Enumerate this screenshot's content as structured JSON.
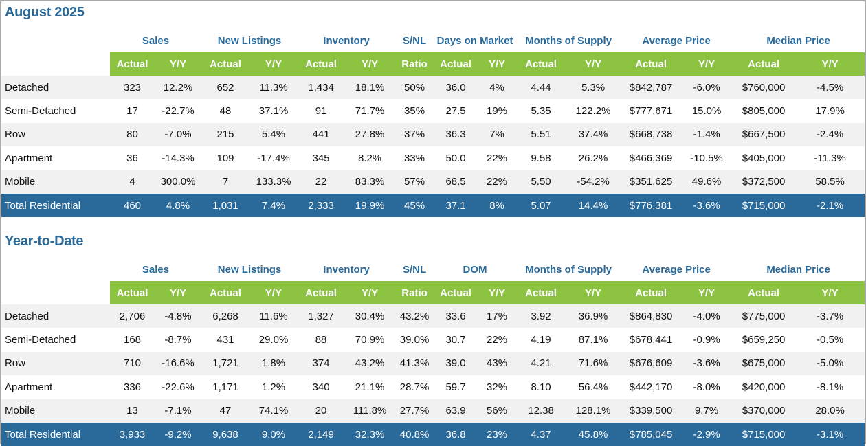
{
  "sections": [
    {
      "title": "August 2025",
      "groups": [
        "Sales",
        "New Listings",
        "Inventory",
        "S/NL",
        "Days on Market",
        "Months of Supply",
        "Average Price",
        "Median Price"
      ],
      "subheaders": [
        "Actual",
        "Y/Y",
        "Actual",
        "Y/Y",
        "Actual",
        "Y/Y",
        "Ratio",
        "Actual",
        "Y/Y",
        "Actual",
        "Y/Y",
        "Actual",
        "Y/Y",
        "Actual",
        "Y/Y"
      ],
      "rows": [
        {
          "label": "Detached",
          "values": [
            "323",
            "12.2%",
            "652",
            "11.3%",
            "1,434",
            "18.1%",
            "50%",
            "36.0",
            "4%",
            "4.44",
            "5.3%",
            "$842,787",
            "-6.0%",
            "$760,000",
            "-4.5%"
          ]
        },
        {
          "label": "Semi-Detached",
          "values": [
            "17",
            "-22.7%",
            "48",
            "37.1%",
            "91",
            "71.7%",
            "35%",
            "27.5",
            "19%",
            "5.35",
            "122.2%",
            "$777,671",
            "15.0%",
            "$805,000",
            "17.9%"
          ]
        },
        {
          "label": "Row",
          "values": [
            "80",
            "-7.0%",
            "215",
            "5.4%",
            "441",
            "27.8%",
            "37%",
            "36.3",
            "7%",
            "5.51",
            "37.4%",
            "$668,738",
            "-1.4%",
            "$667,500",
            "-2.4%"
          ]
        },
        {
          "label": "Apartment",
          "values": [
            "36",
            "-14.3%",
            "109",
            "-17.4%",
            "345",
            "8.2%",
            "33%",
            "50.0",
            "22%",
            "9.58",
            "26.2%",
            "$466,369",
            "-10.5%",
            "$405,000",
            "-11.3%"
          ]
        },
        {
          "label": "Mobile",
          "values": [
            "4",
            "300.0%",
            "7",
            "133.3%",
            "22",
            "83.3%",
            "57%",
            "68.5",
            "22%",
            "5.50",
            "-54.2%",
            "$351,625",
            "49.6%",
            "$372,500",
            "58.5%"
          ]
        }
      ],
      "total": {
        "label": "Total Residential",
        "values": [
          "460",
          "4.8%",
          "1,031",
          "7.4%",
          "2,333",
          "19.9%",
          "45%",
          "37.1",
          "8%",
          "5.07",
          "14.4%",
          "$776,381",
          "-3.6%",
          "$715,000",
          "-2.1%"
        ]
      }
    },
    {
      "title": "Year-to-Date",
      "groups": [
        "Sales",
        "New Listings",
        "Inventory",
        "S/NL",
        "DOM",
        "Months of Supply",
        "Average Price",
        "Median Price"
      ],
      "subheaders": [
        "Actual",
        "Y/Y",
        "Actual",
        "Y/Y",
        "Actual",
        "Y/Y",
        "Ratio",
        "Actual",
        "Y/Y",
        "Actual",
        "Y/Y",
        "Actual",
        "Y/Y",
        "Actual",
        "Y/Y"
      ],
      "rows": [
        {
          "label": "Detached",
          "values": [
            "2,706",
            "-4.8%",
            "6,268",
            "11.6%",
            "1,327",
            "30.4%",
            "43.2%",
            "33.6",
            "17%",
            "3.92",
            "36.9%",
            "$864,830",
            "-4.0%",
            "$775,000",
            "-3.7%"
          ]
        },
        {
          "label": "Semi-Detached",
          "values": [
            "168",
            "-8.7%",
            "431",
            "29.0%",
            "88",
            "70.9%",
            "39.0%",
            "30.7",
            "22%",
            "4.19",
            "87.1%",
            "$678,441",
            "-0.9%",
            "$659,250",
            "-0.5%"
          ]
        },
        {
          "label": "Row",
          "values": [
            "710",
            "-16.6%",
            "1,721",
            "1.8%",
            "374",
            "43.2%",
            "41.3%",
            "39.0",
            "43%",
            "4.21",
            "71.6%",
            "$676,609",
            "-3.6%",
            "$675,000",
            "-5.0%"
          ]
        },
        {
          "label": "Apartment",
          "values": [
            "336",
            "-22.6%",
            "1,171",
            "1.2%",
            "340",
            "21.1%",
            "28.7%",
            "59.7",
            "32%",
            "8.10",
            "56.4%",
            "$442,170",
            "-8.0%",
            "$420,000",
            "-8.1%"
          ]
        },
        {
          "label": "Mobile",
          "values": [
            "13",
            "-7.1%",
            "47",
            "74.1%",
            "20",
            "111.8%",
            "27.7%",
            "63.9",
            "56%",
            "12.38",
            "128.1%",
            "$339,500",
            "9.7%",
            "$370,000",
            "28.0%"
          ]
        }
      ],
      "total": {
        "label": "Total Residential",
        "values": [
          "3,933",
          "-9.2%",
          "9,638",
          "9.0%",
          "2,149",
          "32.3%",
          "40.8%",
          "36.8",
          "23%",
          "4.37",
          "45.8%",
          "$785,045",
          "-2.9%",
          "$715,000",
          "-3.1%"
        ]
      }
    }
  ],
  "colors": {
    "title": "#2a6a9a",
    "subheader_bg": "#8cc341",
    "total_bg": "#2a6a9a",
    "alt_row_bg": "#f1f1f1"
  }
}
